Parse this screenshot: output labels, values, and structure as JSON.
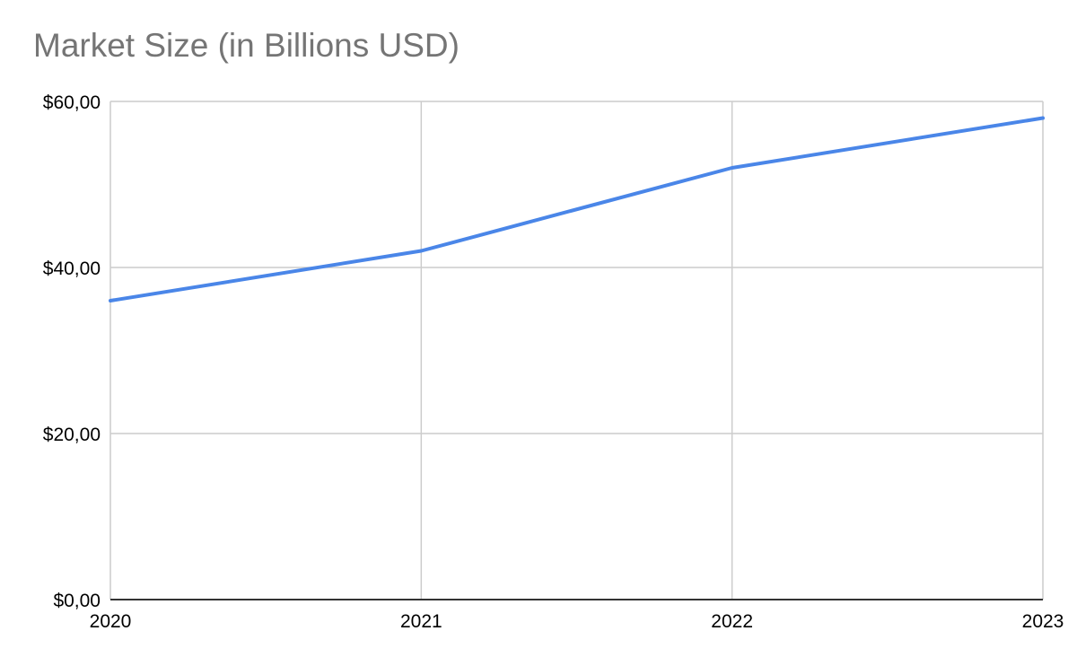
{
  "colors": {
    "line": "#4a86e8",
    "grid": "#cccccc",
    "baseline": "#333333",
    "title": "#757575"
  },
  "chart_data": {
    "type": "line",
    "title": "Market Size (in Billions USD)",
    "xlabel": "",
    "ylabel": "",
    "categories": [
      "2020",
      "2021",
      "2022",
      "2023"
    ],
    "series": [
      {
        "values": [
          36,
          42,
          52,
          58
        ]
      }
    ],
    "ylim": [
      0,
      60
    ],
    "yticks": [
      0,
      20,
      40,
      60
    ],
    "ytick_labels": [
      "$0,00",
      "$20,00",
      "$40,00",
      "$60,00"
    ],
    "grid": true,
    "legend": "none"
  }
}
